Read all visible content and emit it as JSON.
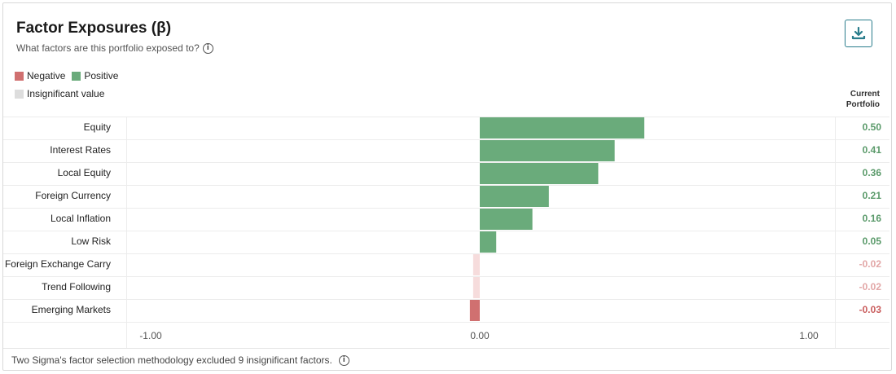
{
  "header": {
    "title": "Factor Exposures (β)",
    "subtitle": "What factors are this portfolio exposed to?",
    "info_glyph": "i"
  },
  "legend": {
    "negative_label": "Negative",
    "positive_label": "Positive",
    "insignificant_label": "Insignificant value"
  },
  "column_header": {
    "line1": "Current",
    "line2": "Portfolio"
  },
  "footer": {
    "note": "Two Sigma's factor selection methodology excluded 9 insignificant factors.",
    "info_glyph": "i"
  },
  "colors": {
    "positive": "#6aab7b",
    "negative": "#d07070",
    "insignificant": "#f6dcdc",
    "positive_text": "#5a9a6a",
    "negative_text": "#c95c5c",
    "insignificant_text": "#e2a6a6",
    "accent": "#2a7d8c"
  },
  "icons": {
    "download": "download-icon",
    "info": "info-icon"
  },
  "chart_data": {
    "type": "bar",
    "orientation": "horizontal",
    "categories": [
      "Equity",
      "Interest Rates",
      "Local Equity",
      "Foreign Currency",
      "Local Inflation",
      "Low Risk",
      "Foreign Exchange Carry",
      "Trend Following",
      "Emerging Markets"
    ],
    "values": [
      0.5,
      0.41,
      0.36,
      0.21,
      0.16,
      0.05,
      -0.02,
      -0.02,
      -0.03
    ],
    "value_labels": [
      "0.50",
      "0.41",
      "0.36",
      "0.21",
      "0.16",
      "0.05",
      "-0.02",
      "-0.02",
      "-0.03"
    ],
    "significance": [
      "positive",
      "positive",
      "positive",
      "positive",
      "positive",
      "positive",
      "insignificant",
      "insignificant",
      "negative"
    ],
    "xlim": [
      -1.0,
      1.0
    ],
    "xticks": [
      -1.0,
      0.0,
      1.0
    ],
    "xtick_labels": [
      "-1.00",
      "0.00",
      "1.00"
    ],
    "grid": false,
    "legend_placement": "top-left"
  }
}
